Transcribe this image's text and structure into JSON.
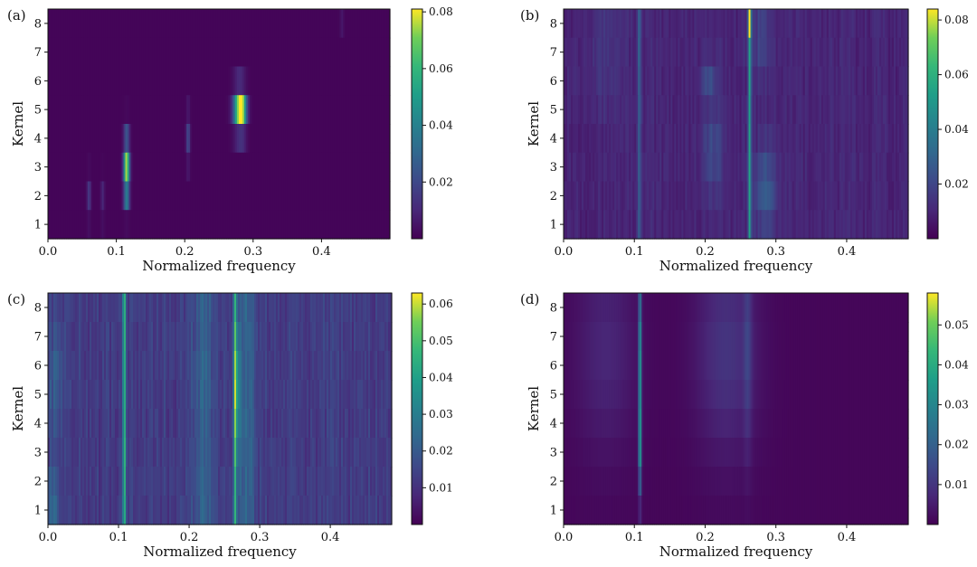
{
  "chart_data": [
    {
      "type": "heatmap",
      "panel": "(a)",
      "xlabel": "Normalized frequency",
      "ylabel": "Kernel",
      "xlim": [
        0.0,
        0.5
      ],
      "ylim": [
        0.5,
        8.5
      ],
      "x_ticks": [
        0.0,
        0.1,
        0.2,
        0.3,
        0.4
      ],
      "x_tick_labels": [
        "0.0",
        "0.1",
        "0.2",
        "0.3",
        "0.4"
      ],
      "y_ticks": [
        1,
        2,
        3,
        4,
        5,
        6,
        7,
        8
      ],
      "y_tick_labels": [
        "1",
        "2",
        "3",
        "4",
        "5",
        "6",
        "7",
        "8"
      ],
      "colormap": "viridis",
      "vmin": 0.0,
      "vmax": 0.081,
      "colorbar_ticks": [
        0.02,
        0.04,
        0.06,
        0.08
      ],
      "colorbar_tick_labels": [
        "0.02",
        "0.04",
        "0.06",
        "0.08"
      ],
      "background_level": 0.001,
      "noise_level": 0.0,
      "features": [
        {
          "x": 0.115,
          "y": 3.0,
          "wx": 0.003,
          "wy": 0.7,
          "v": 0.065
        },
        {
          "x": 0.115,
          "y": 2.4,
          "wx": 0.003,
          "wy": 0.5,
          "v": 0.02
        },
        {
          "x": 0.28,
          "y": 5.0,
          "wx": 0.006,
          "wy": 0.5,
          "v": 0.072
        },
        {
          "x": 0.285,
          "y": 4.8,
          "wx": 0.004,
          "wy": 0.4,
          "v": 0.03
        },
        {
          "x": 0.205,
          "y": 4.0,
          "wx": 0.002,
          "wy": 0.6,
          "v": 0.02
        },
        {
          "x": 0.06,
          "y": 1.9,
          "wx": 0.002,
          "wy": 0.5,
          "v": 0.015
        },
        {
          "x": 0.08,
          "y": 1.8,
          "wx": 0.002,
          "wy": 0.5,
          "v": 0.01
        },
        {
          "x": 0.43,
          "y": 8.3,
          "wx": 0.002,
          "wy": 0.3,
          "v": 0.008
        }
      ]
    },
    {
      "type": "heatmap",
      "panel": "(b)",
      "xlabel": "Normalized frequency",
      "ylabel": "Kernel",
      "xlim": [
        0.0,
        0.487
      ],
      "ylim": [
        0.5,
        8.5
      ],
      "x_ticks": [
        0.0,
        0.1,
        0.2,
        0.3,
        0.4
      ],
      "x_tick_labels": [
        "0.0",
        "0.1",
        "0.2",
        "0.3",
        "0.4"
      ],
      "y_ticks": [
        1,
        2,
        3,
        4,
        5,
        6,
        7,
        8
      ],
      "y_tick_labels": [
        "1",
        "2",
        "3",
        "4",
        "5",
        "6",
        "7",
        "8"
      ],
      "colormap": "viridis",
      "vmin": 0.0,
      "vmax": 0.084,
      "colorbar_ticks": [
        0.02,
        0.04,
        0.06,
        0.08
      ],
      "colorbar_tick_labels": [
        "0.02",
        "0.04",
        "0.06",
        "0.08"
      ],
      "background_level": 0.006,
      "noise_level": 0.008,
      "features": [
        {
          "x": 0.263,
          "y": 4.5,
          "wx": 0.0015,
          "wy": 20,
          "v": 0.045
        },
        {
          "x": 0.263,
          "y": 8.3,
          "wx": 0.0015,
          "wy": 0.4,
          "v": 0.04
        },
        {
          "x": 0.107,
          "y": 4.5,
          "wx": 0.0015,
          "wy": 20,
          "v": 0.02
        },
        {
          "x": 0.285,
          "y": 2.2,
          "wx": 0.01,
          "wy": 1.0,
          "v": 0.018
        },
        {
          "x": 0.21,
          "y": 3.5,
          "wx": 0.01,
          "wy": 1.0,
          "v": 0.012
        },
        {
          "x": 0.205,
          "y": 6.0,
          "wx": 0.008,
          "wy": 0.5,
          "v": 0.012
        },
        {
          "x": 0.28,
          "y": 7.5,
          "wx": 0.01,
          "wy": 0.8,
          "v": 0.01
        },
        {
          "x": 0.06,
          "y": 7.0,
          "wx": 0.02,
          "wy": 1.5,
          "v": 0.005
        }
      ]
    },
    {
      "type": "heatmap",
      "panel": "(c)",
      "xlabel": "Normalized frequency",
      "ylabel": "Kernel",
      "xlim": [
        0.0,
        0.487
      ],
      "ylim": [
        0.5,
        8.5
      ],
      "x_ticks": [
        0.0,
        0.1,
        0.2,
        0.3,
        0.4
      ],
      "x_tick_labels": [
        "0.0",
        "0.1",
        "0.2",
        "0.3",
        "0.4"
      ],
      "y_ticks": [
        1,
        2,
        3,
        4,
        5,
        6,
        7,
        8
      ],
      "y_tick_labels": [
        "1",
        "2",
        "3",
        "4",
        "5",
        "6",
        "7",
        "8"
      ],
      "colormap": "viridis",
      "vmin": 0.0,
      "vmax": 0.063,
      "colorbar_ticks": [
        0.01,
        0.02,
        0.03,
        0.04,
        0.05,
        0.06
      ],
      "colorbar_tick_labels": [
        "0.01",
        "0.02",
        "0.03",
        "0.04",
        "0.05",
        "0.06"
      ],
      "background_level": 0.008,
      "noise_level": 0.009,
      "features": [
        {
          "x": 0.108,
          "y": 4.5,
          "wx": 0.0015,
          "wy": 20,
          "v": 0.035
        },
        {
          "x": 0.265,
          "y": 4.5,
          "wx": 0.0015,
          "wy": 20,
          "v": 0.03
        },
        {
          "x": 0.268,
          "y": 5.0,
          "wx": 0.003,
          "wy": 1.5,
          "v": 0.02
        },
        {
          "x": 0.28,
          "y": 4.5,
          "wx": 0.01,
          "wy": 20,
          "v": 0.01
        },
        {
          "x": 0.22,
          "y": 4.5,
          "wx": 0.012,
          "wy": 20,
          "v": 0.009
        },
        {
          "x": 0.005,
          "y": 1.3,
          "wx": 0.008,
          "wy": 0.8,
          "v": 0.012
        },
        {
          "x": 0.01,
          "y": 5.5,
          "wx": 0.01,
          "wy": 1.5,
          "v": 0.008
        }
      ]
    },
    {
      "type": "heatmap",
      "panel": "(d)",
      "xlabel": "Normalized frequency",
      "ylabel": "Kernel",
      "xlim": [
        0.0,
        0.487
      ],
      "ylim": [
        0.5,
        8.5
      ],
      "x_ticks": [
        0.0,
        0.1,
        0.2,
        0.3,
        0.4
      ],
      "x_tick_labels": [
        "0.0",
        "0.1",
        "0.2",
        "0.3",
        "0.4"
      ],
      "y_ticks": [
        1,
        2,
        3,
        4,
        5,
        6,
        7,
        8
      ],
      "y_tick_labels": [
        "1",
        "2",
        "3",
        "4",
        "5",
        "6",
        "7",
        "8"
      ],
      "colormap": "viridis",
      "vmin": 0.0,
      "vmax": 0.058,
      "colorbar_ticks": [
        0.01,
        0.02,
        0.03,
        0.04,
        0.05
      ],
      "colorbar_tick_labels": [
        "0.01",
        "0.02",
        "0.03",
        "0.04",
        "0.05"
      ],
      "background_level": 0.001,
      "noise_level": 0.0,
      "features": [
        {
          "x": 0.108,
          "y": 6.0,
          "wx": 0.0015,
          "wy": 2.5,
          "v": 0.035
        },
        {
          "x": 0.108,
          "y": 3.0,
          "wx": 0.0015,
          "wy": 1.0,
          "v": 0.02
        },
        {
          "x": 0.23,
          "y": 6.5,
          "wx": 0.03,
          "wy": 2.5,
          "v": 0.009
        },
        {
          "x": 0.06,
          "y": 6.5,
          "wx": 0.03,
          "wy": 2.5,
          "v": 0.006
        },
        {
          "x": 0.26,
          "y": 6.5,
          "wx": 0.004,
          "wy": 2.5,
          "v": 0.008
        }
      ]
    }
  ]
}
